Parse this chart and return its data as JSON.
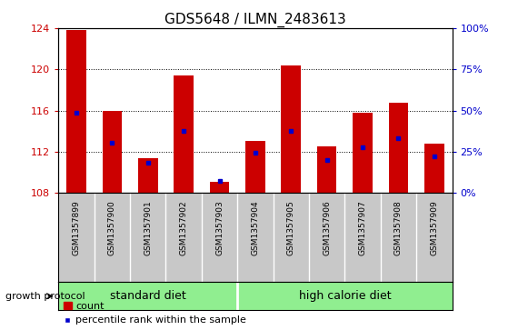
{
  "title": "GDS5648 / ILMN_2483613",
  "samples": [
    "GSM1357899",
    "GSM1357900",
    "GSM1357901",
    "GSM1357902",
    "GSM1357903",
    "GSM1357904",
    "GSM1357905",
    "GSM1357906",
    "GSM1357907",
    "GSM1357908",
    "GSM1357909"
  ],
  "red_values": [
    123.8,
    116.0,
    111.4,
    119.4,
    109.1,
    113.1,
    120.4,
    112.5,
    115.8,
    116.8,
    112.8
  ],
  "blue_values": [
    115.8,
    112.9,
    110.9,
    114.0,
    109.15,
    111.9,
    114.0,
    111.2,
    112.4,
    113.3,
    111.6
  ],
  "ylim_left": [
    108,
    124
  ],
  "ylim_right": [
    0,
    100
  ],
  "yticks_left": [
    108,
    112,
    116,
    120,
    124
  ],
  "yticks_right": [
    0,
    25,
    50,
    75,
    100
  ],
  "ytick_labels_right": [
    "0%",
    "25%",
    "50%",
    "75%",
    "100%"
  ],
  "standard_diet_count": 5,
  "group_label": "growth protocol",
  "bar_color": "#cc0000",
  "blue_color": "#0000cc",
  "background_color": "#ffffff",
  "label_bg": "#c8c8c8",
  "group_color": "#90ee90",
  "left_tick_color": "#cc0000",
  "right_tick_color": "#0000cc",
  "bar_width": 0.55,
  "title_fontsize": 11,
  "tick_fontsize": 8,
  "label_fontsize": 6.5,
  "group_fontsize": 9,
  "legend_fontsize": 8
}
